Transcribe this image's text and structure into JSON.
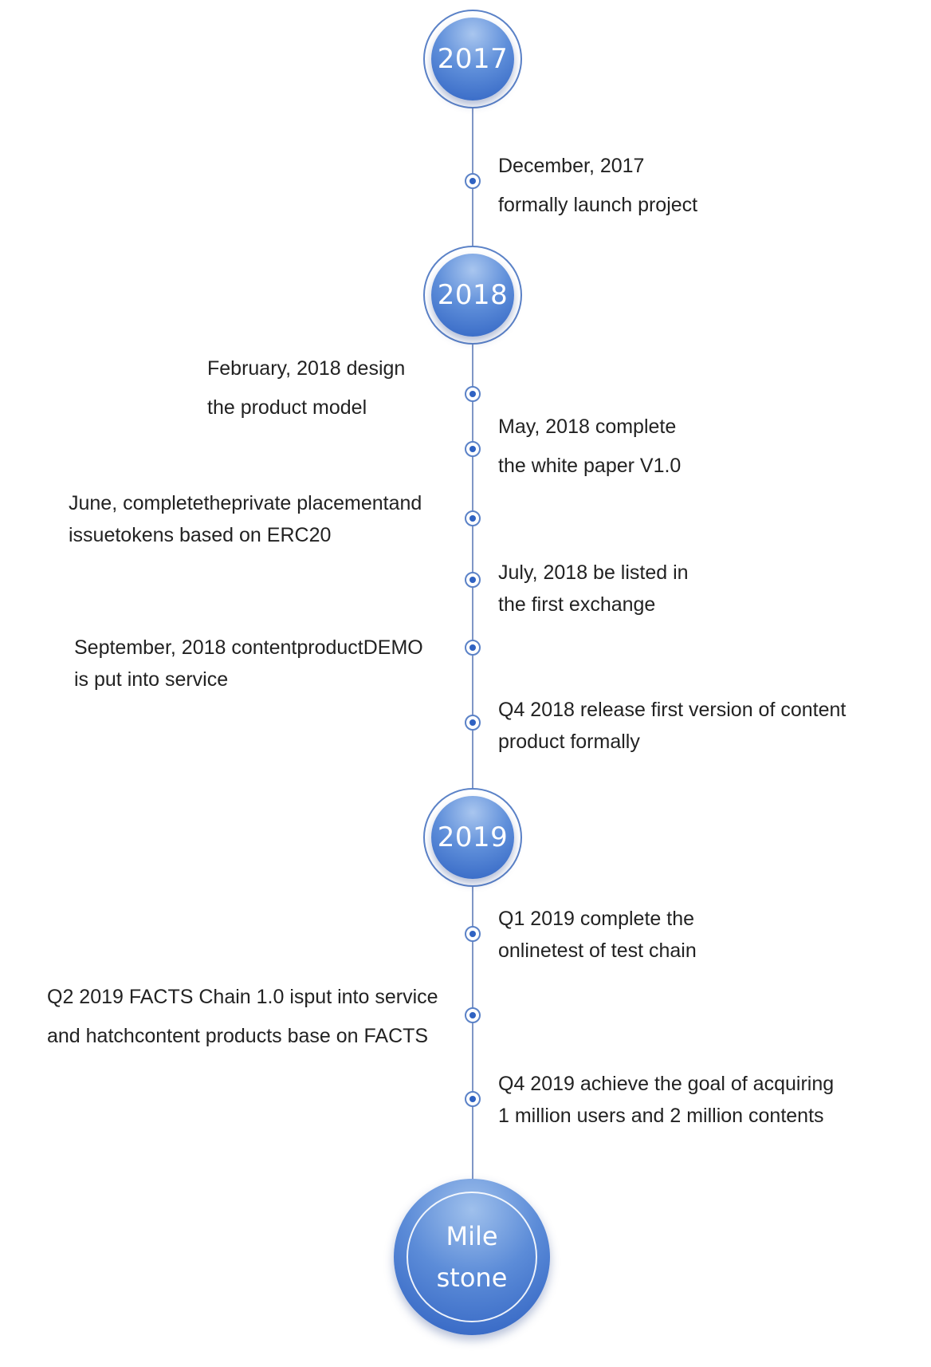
{
  "colors": {
    "axis": "#7f96c6",
    "node_ring": "#5b82c7",
    "node_fill": "#2f62c2",
    "text": "#222222"
  },
  "years": [
    {
      "label": "2017"
    },
    {
      "label": "2018"
    },
    {
      "label": "2019"
    }
  ],
  "events": [
    {
      "line1": "December, 2017",
      "line2": "formally launch project",
      "side": "right"
    },
    {
      "line1": "February, 2018 design",
      "line2": "the product model",
      "side": "left"
    },
    {
      "line1": "May, 2018 complete",
      "line2": "the white paper V1.0",
      "side": "right"
    },
    {
      "line1": "June, completetheprivate placementand",
      "line2": "issuetokens based on ERC20",
      "side": "left"
    },
    {
      "line1": "July, 2018 be listed in",
      "line2": "the first exchange",
      "side": "right"
    },
    {
      "line1": "September, 2018 contentproductDEMO",
      "line2": " is put into service",
      "side": "left"
    },
    {
      "line1": "Q4 2018  release first version of content",
      "line2": "product formally",
      "side": "right"
    },
    {
      "line1": "Q1 2019 complete the",
      "line2": "onlinetest of test chain",
      "side": "right"
    },
    {
      "line1": "Q2 2019 FACTS Chain 1.0 isput into service",
      "line2": "and hatchcontent products base on  FACTS",
      "side": "left"
    },
    {
      "line1": "Q4 2019 achieve the goal of acquiring",
      "line2": "1 million users and 2 million contents",
      "side": "right"
    }
  ],
  "milestone": {
    "line1": "Mile",
    "line2": "stone"
  }
}
